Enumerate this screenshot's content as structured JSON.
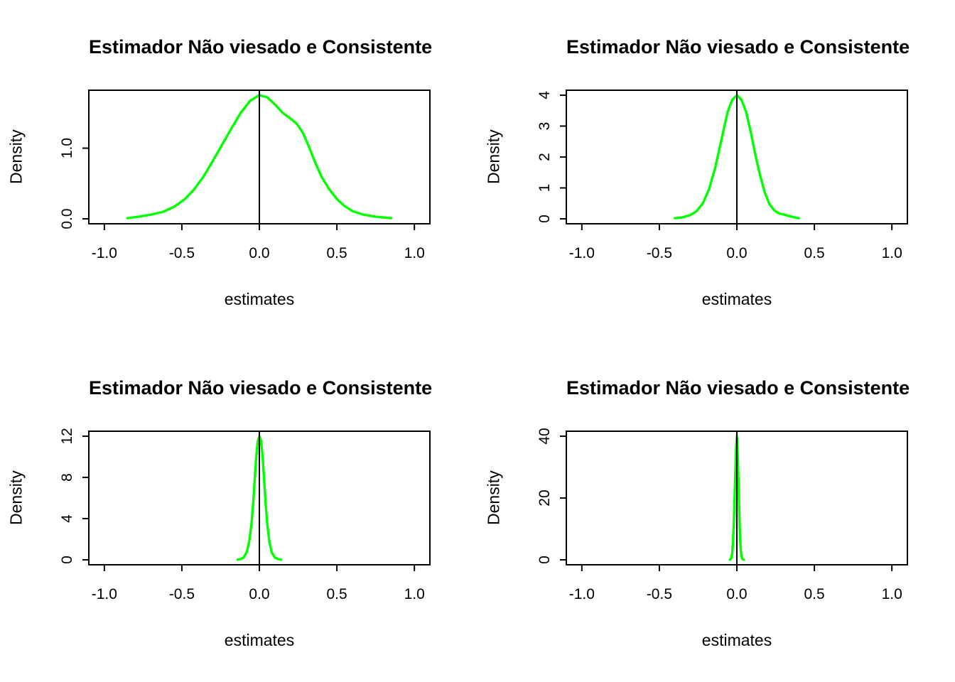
{
  "figure": {
    "background": "#ffffff",
    "curve_color": "#00FF00",
    "axis_color": "#000000"
  },
  "chart_data": [
    {
      "type": "line",
      "title": "Estimador Não viesado e Consistente",
      "xlabel": "estimates",
      "ylabel": "Density",
      "curve_color": "#00FF00",
      "vline_x": 0,
      "xlim": [
        -1.1,
        1.1
      ],
      "ylim": [
        0,
        1.75
      ],
      "xticks": [
        -1.0,
        -0.5,
        0.0,
        0.5,
        1.0
      ],
      "xtick_labels": [
        "-1.0",
        "-0.5",
        "0.0",
        "0.5",
        "1.0"
      ],
      "yticks": [
        0.0,
        1.0
      ],
      "ytick_labels": [
        "0.0",
        "1.0"
      ],
      "density": {
        "x": [
          -0.85,
          -0.78,
          -0.7,
          -0.62,
          -0.55,
          -0.48,
          -0.42,
          -0.36,
          -0.3,
          -0.24,
          -0.18,
          -0.12,
          -0.06,
          0.0,
          0.05,
          0.1,
          0.15,
          0.2,
          0.24,
          0.28,
          0.32,
          0.36,
          0.4,
          0.45,
          0.5,
          0.55,
          0.6,
          0.67,
          0.75,
          0.85
        ],
        "y": [
          0.01,
          0.03,
          0.06,
          0.1,
          0.17,
          0.28,
          0.42,
          0.6,
          0.82,
          1.05,
          1.28,
          1.5,
          1.67,
          1.75,
          1.72,
          1.62,
          1.5,
          1.42,
          1.35,
          1.22,
          1.02,
          0.8,
          0.6,
          0.42,
          0.28,
          0.18,
          0.11,
          0.06,
          0.03,
          0.01
        ]
      }
    },
    {
      "type": "line",
      "title": "Estimador Não viesado e Consistente",
      "xlabel": "estimates",
      "ylabel": "Density",
      "curve_color": "#00FF00",
      "vline_x": 0,
      "xlim": [
        -1.1,
        1.1
      ],
      "ylim": [
        0,
        4
      ],
      "xticks": [
        -1.0,
        -0.5,
        0.0,
        0.5,
        1.0
      ],
      "xtick_labels": [
        "-1.0",
        "-0.5",
        "0.0",
        "0.5",
        "1.0"
      ],
      "yticks": [
        0,
        1,
        2,
        3,
        4
      ],
      "ytick_labels": [
        "0",
        "1",
        "2",
        "3",
        "4"
      ],
      "density": {
        "x": [
          -0.4,
          -0.35,
          -0.3,
          -0.26,
          -0.22,
          -0.18,
          -0.14,
          -0.1,
          -0.06,
          -0.03,
          0.0,
          0.03,
          0.06,
          0.09,
          0.12,
          0.15,
          0.18,
          0.21,
          0.24,
          0.27,
          0.3,
          0.33,
          0.36,
          0.4
        ],
        "y": [
          0.02,
          0.05,
          0.12,
          0.25,
          0.5,
          0.95,
          1.65,
          2.55,
          3.45,
          3.85,
          4.0,
          3.85,
          3.45,
          2.8,
          2.05,
          1.4,
          0.85,
          0.48,
          0.28,
          0.18,
          0.14,
          0.1,
          0.06,
          0.02
        ]
      }
    },
    {
      "type": "line",
      "title": "Estimador Não viesado e Consistente",
      "xlabel": "estimates",
      "ylabel": "Density",
      "curve_color": "#00FF00",
      "vline_x": 0,
      "xlim": [
        -1.1,
        1.1
      ],
      "ylim": [
        0,
        12
      ],
      "xticks": [
        -1.0,
        -0.5,
        0.0,
        0.5,
        1.0
      ],
      "xtick_labels": [
        "-1.0",
        "-0.5",
        "0.0",
        "0.5",
        "1.0"
      ],
      "yticks": [
        0,
        4,
        8,
        12
      ],
      "ytick_labels": [
        "0",
        "4",
        "8",
        "12"
      ],
      "density": {
        "x": [
          -0.14,
          -0.12,
          -0.1,
          -0.08,
          -0.065,
          -0.05,
          -0.04,
          -0.03,
          -0.02,
          -0.01,
          0.0,
          0.01,
          0.02,
          0.03,
          0.04,
          0.05,
          0.065,
          0.08,
          0.1,
          0.12,
          0.14
        ],
        "y": [
          0.02,
          0.08,
          0.25,
          0.8,
          1.8,
          3.6,
          5.5,
          7.8,
          10.0,
          11.5,
          12.0,
          11.6,
          10.2,
          8.0,
          5.6,
          3.6,
          1.7,
          0.7,
          0.22,
          0.07,
          0.02
        ]
      }
    },
    {
      "type": "line",
      "title": "Estimador Não viesado e Consistente",
      "xlabel": "estimates",
      "ylabel": "Density",
      "curve_color": "#00FF00",
      "vline_x": 0,
      "xlim": [
        -1.1,
        1.1
      ],
      "ylim": [
        0,
        40
      ],
      "xticks": [
        -1.0,
        -0.5,
        0.0,
        0.5,
        1.0
      ],
      "xtick_labels": [
        "-1.0",
        "-0.5",
        "0.0",
        "0.5",
        "1.0"
      ],
      "yticks": [
        0,
        20,
        40
      ],
      "ytick_labels": [
        "0",
        "20",
        "40"
      ],
      "density": {
        "x": [
          -0.045,
          -0.04,
          -0.035,
          -0.03,
          -0.025,
          -0.02,
          -0.015,
          -0.01,
          -0.005,
          0.0,
          0.005,
          0.01,
          0.015,
          0.02,
          0.025,
          0.03,
          0.035,
          0.04,
          0.045
        ],
        "y": [
          0.05,
          0.2,
          0.8,
          2.2,
          5.5,
          11,
          19,
          28,
          36,
          40,
          35,
          26,
          16,
          8,
          3.2,
          1.0,
          0.3,
          0.1,
          0.05
        ]
      }
    }
  ]
}
